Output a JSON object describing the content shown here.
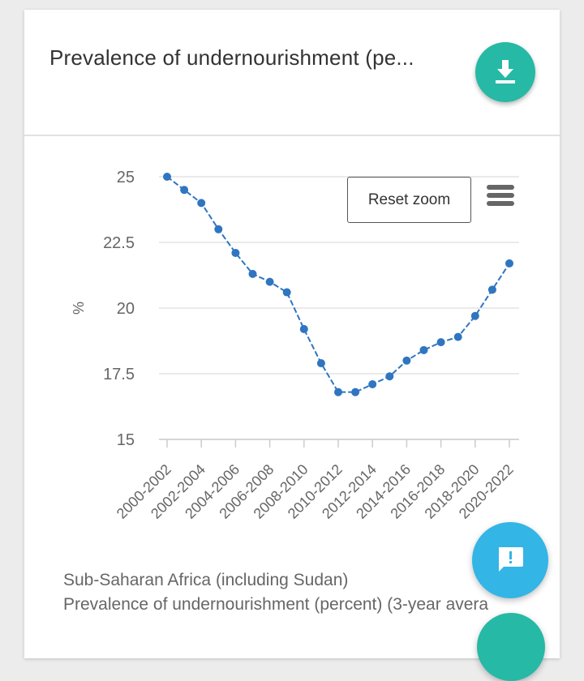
{
  "card": {
    "title": "Prevalence of undernourishment (pe...",
    "download_icon": "download-icon"
  },
  "toolbar": {
    "reset_zoom_label": "Reset zoom",
    "menu_icon": "hamburger-menu-icon"
  },
  "caption": {
    "line1": "Sub-Saharan Africa (including Sudan)",
    "line2": "Prevalence of undernourishment (percent) (3-year avera"
  },
  "fabs": {
    "feedback_icon": "feedback-icon",
    "feedback_color": "#33b5e6",
    "accent_color": "#26b9a5"
  },
  "chart_data": {
    "type": "line",
    "ylabel": "%",
    "ylim": [
      15,
      25
    ],
    "yticks": [
      "25",
      "22.5",
      "20",
      "17.5",
      "15"
    ],
    "ytick_values": [
      25,
      22.5,
      20,
      17.5,
      15
    ],
    "xtick_labels": [
      "2000-2002",
      "2002-2004",
      "2004-2006",
      "2006-2008",
      "2008-2010",
      "2010-2012",
      "2012-2014",
      "2014-2016",
      "2016-2018",
      "2018-2020",
      "2020-2022"
    ],
    "grid": true,
    "line_color": "#2f75c0",
    "series": [
      {
        "x": [
          "2000-2002",
          "2001-2003",
          "2002-2004",
          "2003-2005",
          "2004-2006",
          "2005-2007",
          "2006-2008",
          "2007-2009",
          "2008-2010",
          "2009-2011",
          "2010-2012",
          "2011-2013",
          "2012-2014",
          "2013-2015",
          "2014-2016",
          "2015-2017",
          "2016-2018",
          "2017-2019",
          "2018-2020",
          "2019-2021",
          "2020-2022"
        ],
        "values": [
          25.0,
          24.5,
          24.0,
          23.0,
          22.1,
          21.3,
          21.0,
          20.6,
          19.2,
          17.9,
          16.8,
          16.8,
          17.1,
          17.4,
          18.0,
          18.4,
          18.7,
          18.9,
          19.7,
          20.7,
          21.7
        ]
      }
    ]
  }
}
